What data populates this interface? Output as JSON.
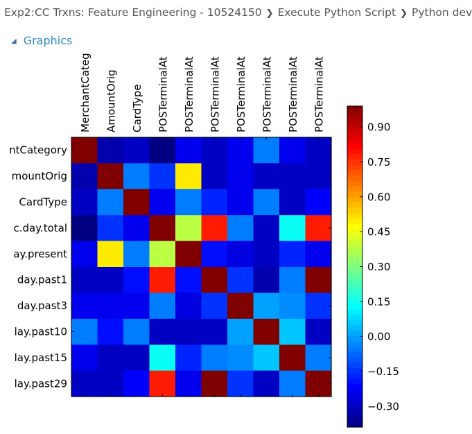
{
  "breadcrumb": {
    "items": [
      "Exp2:CC Trxns: Feature Engineering - 10524150",
      "Execute Python Script",
      "Python device"
    ],
    "separator": "❯"
  },
  "section": {
    "label": "Graphics",
    "collapse_icon": "collapse-triangle-icon"
  },
  "chart_data": {
    "type": "heatmap",
    "colormap": "jet",
    "column_labels": [
      "MerchantCateg",
      "AmountOrig",
      "CardType",
      "POSTerminalAt",
      "POSTerminalAt",
      "POSTerminalAt",
      "POSTerminalAt",
      "POSTerminalAt",
      "POSTerminalAt",
      "POSTerminalAt"
    ],
    "row_labels": [
      "ntCategory",
      "mountOrig",
      "CardType",
      "c.day.total",
      "ay.present",
      "day.past1",
      "day.past3",
      "lay.past10",
      "lay.past15",
      "lay.past29"
    ],
    "matrix": [
      [
        1.0,
        -0.33,
        -0.3,
        -0.4,
        -0.24,
        -0.3,
        -0.24,
        -0.05,
        -0.24,
        -0.3
      ],
      [
        -0.33,
        1.0,
        -0.05,
        -0.15,
        0.5,
        -0.3,
        -0.24,
        -0.3,
        -0.3,
        -0.3
      ],
      [
        -0.3,
        -0.05,
        1.0,
        -0.24,
        -0.05,
        -0.17,
        -0.24,
        -0.05,
        -0.3,
        -0.22
      ],
      [
        -0.4,
        -0.15,
        -0.24,
        1.0,
        0.38,
        0.78,
        -0.05,
        -0.3,
        0.14,
        0.78
      ],
      [
        -0.24,
        0.5,
        -0.05,
        0.38,
        1.0,
        -0.2,
        -0.26,
        -0.3,
        -0.17,
        -0.24
      ],
      [
        -0.3,
        -0.3,
        -0.2,
        0.78,
        -0.2,
        1.0,
        -0.15,
        -0.33,
        -0.05,
        1.0
      ],
      [
        -0.24,
        -0.24,
        -0.24,
        -0.05,
        -0.26,
        -0.15,
        1.0,
        0.0,
        -0.03,
        -0.15
      ],
      [
        -0.05,
        -0.2,
        -0.05,
        -0.3,
        -0.3,
        -0.3,
        0.0,
        1.0,
        0.05,
        -0.3
      ],
      [
        -0.24,
        -0.3,
        -0.3,
        0.14,
        -0.17,
        -0.05,
        -0.03,
        0.05,
        1.0,
        -0.05
      ],
      [
        -0.3,
        -0.3,
        -0.22,
        0.78,
        -0.24,
        1.0,
        -0.15,
        -0.3,
        -0.05,
        1.0
      ]
    ],
    "colorbar": {
      "ticks": [
        -0.3,
        -0.15,
        0.0,
        0.15,
        0.3,
        0.45,
        0.6,
        0.75,
        0.9
      ],
      "tick_labels": [
        "−0.30",
        "−0.15",
        "0.00",
        "0.15",
        "0.30",
        "0.45",
        "0.60",
        "0.75",
        "0.90"
      ],
      "range": [
        -0.39,
        0.99
      ]
    }
  }
}
